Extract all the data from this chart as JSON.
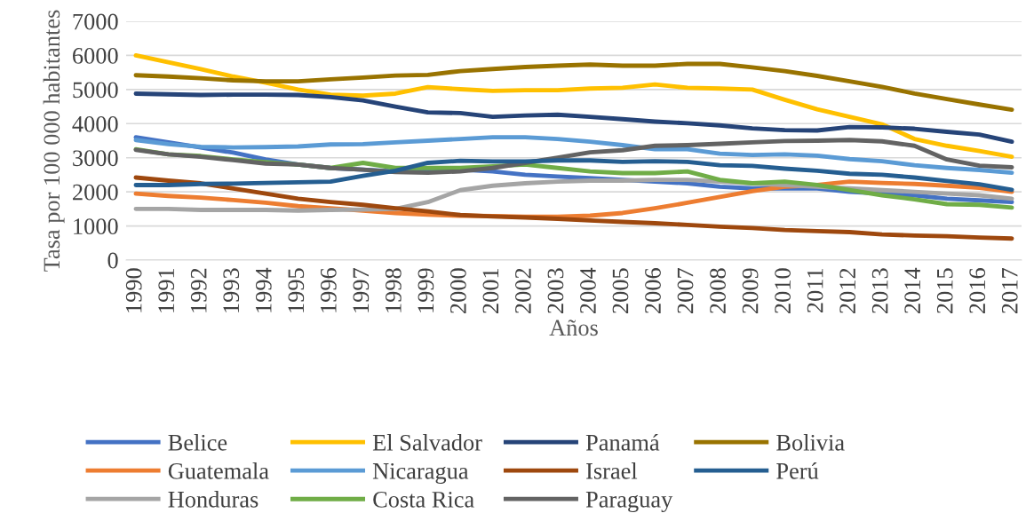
{
  "chart_data": {
    "type": "line",
    "xlabel": "Años",
    "ylabel": "Tasa por 100 000 habitantes",
    "categories": [
      "1990",
      "1991",
      "1992",
      "1993",
      "1994",
      "1995",
      "1996",
      "1997",
      "1998",
      "1999",
      "2000",
      "2001",
      "2002",
      "2003",
      "2004",
      "2005",
      "2006",
      "2007",
      "2008",
      "2009",
      "2010",
      "2011",
      "2012",
      "2013",
      "2014",
      "2015",
      "2016",
      "2017"
    ],
    "ylim": [
      0,
      7000
    ],
    "yticks": [
      0,
      1000,
      2000,
      3000,
      4000,
      5000,
      6000,
      7000
    ],
    "grid": "y",
    "legend": "bottom",
    "marker": "none",
    "line_style": "solid",
    "series": [
      {
        "name": "Belice",
        "color": "#4472c4",
        "values": [
          3600,
          3450,
          3300,
          3150,
          2950,
          2800,
          2700,
          2650,
          2600,
          2600,
          2650,
          2600,
          2500,
          2450,
          2400,
          2350,
          2300,
          2250,
          2150,
          2100,
          2100,
          2100,
          2000,
          1950,
          1900,
          1800,
          1750,
          1700
        ]
      },
      {
        "name": "Guatemala",
        "color": "#ed7d31",
        "values": [
          1950,
          1880,
          1830,
          1760,
          1680,
          1580,
          1520,
          1450,
          1380,
          1330,
          1300,
          1290,
          1270,
          1270,
          1300,
          1380,
          1520,
          1680,
          1850,
          2020,
          2150,
          2200,
          2300,
          2260,
          2230,
          2180,
          2120,
          2000
        ]
      },
      {
        "name": "Honduras",
        "color": "#a5a5a5",
        "values": [
          1500,
          1500,
          1470,
          1470,
          1470,
          1450,
          1470,
          1480,
          1500,
          1700,
          2050,
          2180,
          2250,
          2300,
          2330,
          2330,
          2350,
          2350,
          2300,
          2250,
          2200,
          2150,
          2100,
          2050,
          2000,
          1950,
          1900,
          1800
        ]
      },
      {
        "name": "El Salvador",
        "color": "#ffc000",
        "values": [
          6000,
          5800,
          5600,
          5380,
          5200,
          5000,
          4850,
          4820,
          4880,
          5070,
          5010,
          4960,
          4980,
          4980,
          5030,
          5050,
          5150,
          5050,
          5030,
          5000,
          4700,
          4420,
          4200,
          3980,
          3550,
          3350,
          3200,
          3030
        ]
      },
      {
        "name": "Nicaragua",
        "color": "#5b9bd5",
        "values": [
          3520,
          3400,
          3320,
          3300,
          3310,
          3330,
          3390,
          3400,
          3450,
          3500,
          3550,
          3600,
          3600,
          3550,
          3470,
          3370,
          3250,
          3250,
          3120,
          3080,
          3100,
          3060,
          2960,
          2900,
          2780,
          2700,
          2640,
          2560
        ]
      },
      {
        "name": "Costa Rica",
        "color": "#70ad47",
        "values": [
          3250,
          3100,
          3050,
          2950,
          2870,
          2800,
          2700,
          2850,
          2700,
          2700,
          2700,
          2750,
          2800,
          2700,
          2600,
          2550,
          2550,
          2600,
          2350,
          2250,
          2300,
          2200,
          2050,
          1900,
          1780,
          1640,
          1620,
          1540
        ]
      },
      {
        "name": "Panamá",
        "color": "#264478",
        "values": [
          4880,
          4860,
          4840,
          4850,
          4850,
          4840,
          4780,
          4680,
          4500,
          4330,
          4310,
          4200,
          4240,
          4260,
          4200,
          4130,
          4060,
          4010,
          3950,
          3860,
          3810,
          3800,
          3900,
          3890,
          3850,
          3760,
          3680,
          3470
        ]
      },
      {
        "name": "Israel",
        "color": "#9e480e",
        "values": [
          2420,
          2330,
          2250,
          2100,
          1950,
          1800,
          1700,
          1620,
          1520,
          1430,
          1320,
          1280,
          1250,
          1210,
          1160,
          1120,
          1080,
          1030,
          980,
          940,
          880,
          850,
          820,
          750,
          720,
          700,
          660,
          630
        ]
      },
      {
        "name": "Paraguay",
        "color": "#636363",
        "values": [
          3230,
          3100,
          3030,
          2930,
          2830,
          2800,
          2700,
          2650,
          2580,
          2560,
          2600,
          2700,
          2850,
          3000,
          3160,
          3220,
          3350,
          3370,
          3410,
          3450,
          3490,
          3500,
          3520,
          3480,
          3350,
          2950,
          2770,
          2720
        ]
      },
      {
        "name": "Bolivia",
        "color": "#997300",
        "values": [
          5420,
          5380,
          5330,
          5270,
          5240,
          5240,
          5300,
          5350,
          5410,
          5430,
          5540,
          5600,
          5660,
          5700,
          5730,
          5700,
          5700,
          5750,
          5750,
          5650,
          5540,
          5400,
          5240,
          5080,
          4880,
          4720,
          4560,
          4410
        ]
      },
      {
        "name": "Perú",
        "color": "#255e91",
        "values": [
          2200,
          2200,
          2230,
          2240,
          2260,
          2280,
          2300,
          2470,
          2620,
          2850,
          2910,
          2890,
          2890,
          2920,
          2920,
          2880,
          2900,
          2880,
          2780,
          2760,
          2680,
          2620,
          2530,
          2500,
          2420,
          2320,
          2220,
          2060
        ]
      }
    ]
  }
}
